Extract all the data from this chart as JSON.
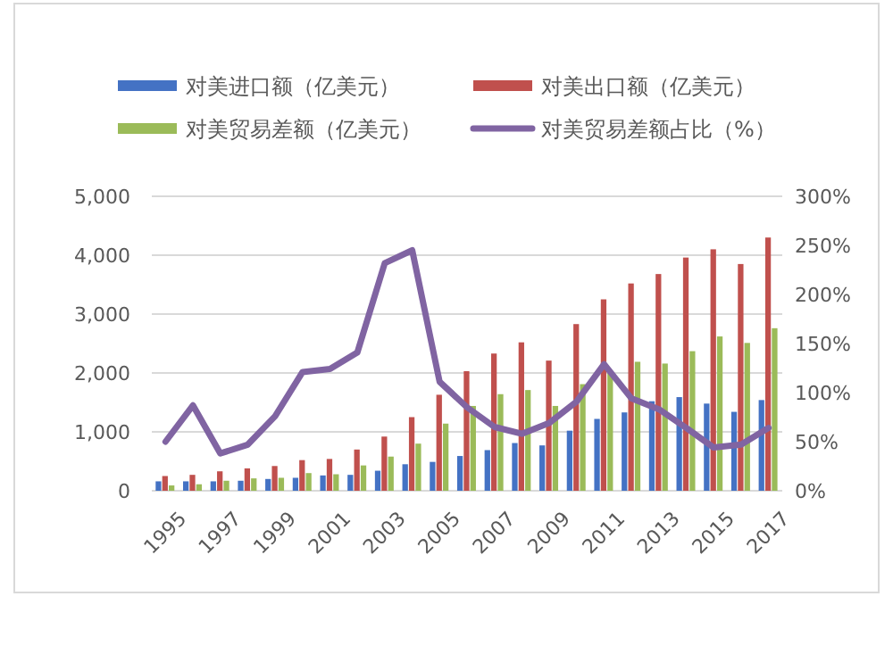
{
  "chart_data": {
    "type": "bar",
    "categories": [
      "1995",
      null,
      "1997",
      null,
      "1999",
      null,
      "2001",
      null,
      "2003",
      null,
      "2005",
      null,
      "2007",
      null,
      "2009",
      null,
      "2011",
      null,
      "2013",
      null,
      "2015",
      null,
      "2017"
    ],
    "series": [
      {
        "name": "对美进口额（亿美元）",
        "color": "#4472c4",
        "values": [
          160,
          160,
          160,
          170,
          200,
          220,
          260,
          270,
          340,
          450,
          490,
          590,
          690,
          810,
          770,
          1020,
          1220,
          1330,
          1520,
          1590,
          1480,
          1340,
          1540
        ]
      },
      {
        "name": "对美出口额（亿美元）",
        "color": "#c0504d",
        "values": [
          250,
          270,
          330,
          380,
          420,
          520,
          540,
          700,
          920,
          1250,
          1630,
          2030,
          2330,
          2520,
          2210,
          2830,
          3250,
          3520,
          3680,
          3960,
          4100,
          3850,
          4300
        ]
      },
      {
        "name": "对美贸易差额（亿美元）",
        "color": "#9bbb59",
        "values": [
          90,
          110,
          170,
          210,
          220,
          300,
          280,
          430,
          580,
          800,
          1140,
          1440,
          1640,
          1710,
          1440,
          1810,
          2030,
          2190,
          2160,
          2370,
          2620,
          2510,
          2760
        ]
      },
      {
        "name": "对美贸易差额占比（%）",
        "color": "#8064a2",
        "type": "line",
        "axis": "y2",
        "values": [
          50,
          87,
          38,
          47,
          76,
          121,
          124,
          141,
          232,
          245,
          111,
          85,
          65,
          58,
          69,
          91,
          129,
          94,
          83,
          64,
          44,
          47,
          64
        ]
      }
    ],
    "ylim": [
      0,
      5000
    ],
    "yticks": [
      0,
      {
        "value": 1000,
        "label": "1,000"
      },
      {
        "value": 2000,
        "label": "2,000"
      },
      {
        "value": 3000,
        "label": "3,000"
      },
      {
        "value": 4000,
        "label": "4,000"
      },
      {
        "value": 5000,
        "label": "5,000"
      }
    ],
    "y2lim": [
      0,
      300
    ],
    "y2ticks": [
      {
        "value": 0,
        "label": "0%"
      },
      {
        "value": 50,
        "label": "50%"
      },
      {
        "value": 100,
        "label": "100%"
      },
      {
        "value": 150,
        "label": "150%"
      },
      {
        "value": 200,
        "label": "200%"
      },
      {
        "value": 250,
        "label": "250%"
      },
      {
        "value": 300,
        "label": "300%"
      }
    ],
    "grid": "y",
    "legend": "top",
    "line_style": "solid",
    "marker": "none"
  }
}
